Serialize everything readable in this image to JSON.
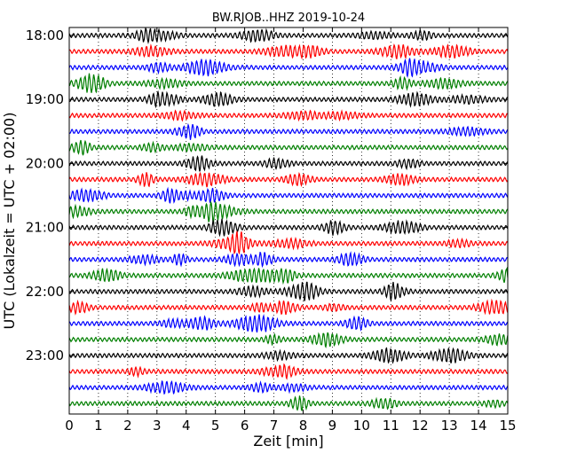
{
  "chart_data": {
    "type": "line",
    "title": "BW.RJOB..HHZ 2019-10-24",
    "xlabel": "Zeit  [min]",
    "ylabel": "UTC (Lokalzeit = UTC + 02:00)",
    "xlim": [
      0,
      15
    ],
    "xticks": [
      "0",
      "1",
      "2",
      "3",
      "4",
      "5",
      "6",
      "7",
      "8",
      "9",
      "10",
      "11",
      "12",
      "13",
      "14",
      "15"
    ],
    "yticks": [
      "18:00",
      "19:00",
      "20:00",
      "21:00",
      "22:00",
      "23:00"
    ],
    "grid": "vertical dotted",
    "trace_interval_minutes": 15,
    "color_cycle": [
      "#000000",
      "#ff0000",
      "#0000ff",
      "#007f00"
    ],
    "traces": [
      {
        "start": "18:00",
        "color": "#000000"
      },
      {
        "start": "18:15",
        "color": "#ff0000"
      },
      {
        "start": "18:30",
        "color": "#0000ff"
      },
      {
        "start": "18:45",
        "color": "#007f00"
      },
      {
        "start": "19:00",
        "color": "#000000"
      },
      {
        "start": "19:15",
        "color": "#ff0000"
      },
      {
        "start": "19:30",
        "color": "#0000ff"
      },
      {
        "start": "19:45",
        "color": "#007f00"
      },
      {
        "start": "20:00",
        "color": "#000000"
      },
      {
        "start": "20:15",
        "color": "#ff0000"
      },
      {
        "start": "20:30",
        "color": "#0000ff"
      },
      {
        "start": "20:45",
        "color": "#007f00"
      },
      {
        "start": "21:00",
        "color": "#000000"
      },
      {
        "start": "21:15",
        "color": "#ff0000"
      },
      {
        "start": "21:30",
        "color": "#0000ff"
      },
      {
        "start": "21:45",
        "color": "#007f00"
      },
      {
        "start": "22:00",
        "color": "#000000"
      },
      {
        "start": "22:15",
        "color": "#ff0000"
      },
      {
        "start": "22:30",
        "color": "#0000ff"
      },
      {
        "start": "22:45",
        "color": "#007f00"
      },
      {
        "start": "23:00",
        "color": "#000000"
      },
      {
        "start": "23:15",
        "color": "#ff0000"
      },
      {
        "start": "23:30",
        "color": "#0000ff"
      },
      {
        "start": "23:45",
        "color": "#007f00"
      }
    ]
  }
}
